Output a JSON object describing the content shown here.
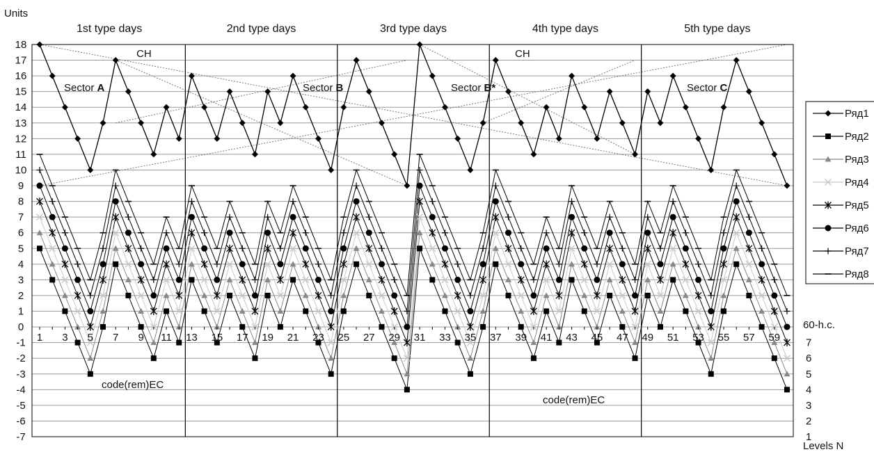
{
  "chart_data": {
    "type": "line",
    "ylabel": "Units",
    "xlabel": "Levels N",
    "ylim": [
      -7,
      18
    ],
    "xlim": [
      1,
      60
    ],
    "y_ticks": [
      -7,
      -6,
      -5,
      -4,
      -3,
      -2,
      -1,
      0,
      1,
      2,
      3,
      4,
      5,
      6,
      7,
      8,
      9,
      10,
      11,
      12,
      13,
      14,
      15,
      16,
      17,
      18
    ],
    "x_tick_labels": [
      1,
      3,
      5,
      7,
      9,
      11,
      13,
      15,
      17,
      19,
      21,
      23,
      25,
      27,
      29,
      31,
      33,
      35,
      37,
      39,
      41,
      43,
      45,
      47,
      49,
      51,
      53,
      55,
      57,
      59
    ],
    "grid": true,
    "legend_position": "right",
    "sections": [
      {
        "label": "1st type days",
        "start": 1,
        "end": 12
      },
      {
        "label": "2nd type days",
        "start": 13,
        "end": 24
      },
      {
        "label": "3rd type days",
        "start": 25,
        "end": 36
      },
      {
        "label": "4th type days",
        "start": 37,
        "end": 48
      },
      {
        "label": "5th type days",
        "start": 49,
        "end": 60
      }
    ],
    "annotations": {
      "ch_left": "CH",
      "ch_right": "CH",
      "sector_a_prefix": "Sector ",
      "sector_a_letter": "A",
      "sector_b_prefix": "Sector ",
      "sector_b_letter": "B",
      "sector_b2_prefix": "Sector ",
      "sector_b2_letter": "B*",
      "sector_c_prefix": "Sector ",
      "sector_c_letter": "C",
      "code_left": "code(rem)EC",
      "code_right": "code(rem)EC",
      "h_label": "60-h.c.",
      "right_levels": [
        "7",
        "6",
        "5",
        "4",
        "3",
        "2",
        "1"
      ]
    },
    "trend_lines": [
      {
        "from": [
          1,
          18
        ],
        "to": [
          60,
          9
        ]
      },
      {
        "from": [
          1,
          9
        ],
        "to": [
          60,
          18
        ]
      },
      {
        "from": [
          7,
          17
        ],
        "to": [
          30,
          9
        ]
      },
      {
        "from": [
          7,
          13
        ],
        "to": [
          30,
          17
        ]
      },
      {
        "from": [
          31,
          18
        ],
        "to": [
          48,
          11
        ]
      },
      {
        "from": [
          36,
          13
        ],
        "to": [
          48,
          17
        ]
      }
    ],
    "base_series": [
      18,
      16,
      14,
      12,
      10,
      13,
      17,
      15,
      13,
      11,
      14,
      12,
      16,
      14,
      12,
      15,
      13,
      11,
      15,
      13,
      16,
      14,
      12,
      10,
      14,
      17,
      15,
      13,
      11,
      9,
      18,
      16,
      14,
      12,
      10,
      13,
      17,
      15,
      13,
      11,
      14,
      12,
      16,
      14,
      12,
      15,
      13,
      11,
      15,
      13,
      16,
      14,
      12,
      10,
      14,
      17,
      15,
      13,
      11,
      9
    ],
    "series": [
      {
        "name": "Ряд1",
        "marker": "diamond",
        "color": "#000000",
        "offset": 0
      },
      {
        "name": "Ряд2",
        "marker": "square",
        "color": "#000000",
        "offset": -13
      },
      {
        "name": "Ряд3",
        "marker": "triangle",
        "color": "#888888",
        "offset": -12
      },
      {
        "name": "Ряд4",
        "marker": "x",
        "color": "#c8c8c8",
        "offset": -11
      },
      {
        "name": "Ряд5",
        "marker": "star",
        "color": "#000000",
        "offset": -10
      },
      {
        "name": "Ряд6",
        "marker": "circle",
        "color": "#000000",
        "offset": -9
      },
      {
        "name": "Ряд7",
        "marker": "plus",
        "color": "#000000",
        "offset": -8
      },
      {
        "name": "Ряд8",
        "marker": "dash",
        "color": "#000000",
        "offset": -7
      }
    ]
  }
}
